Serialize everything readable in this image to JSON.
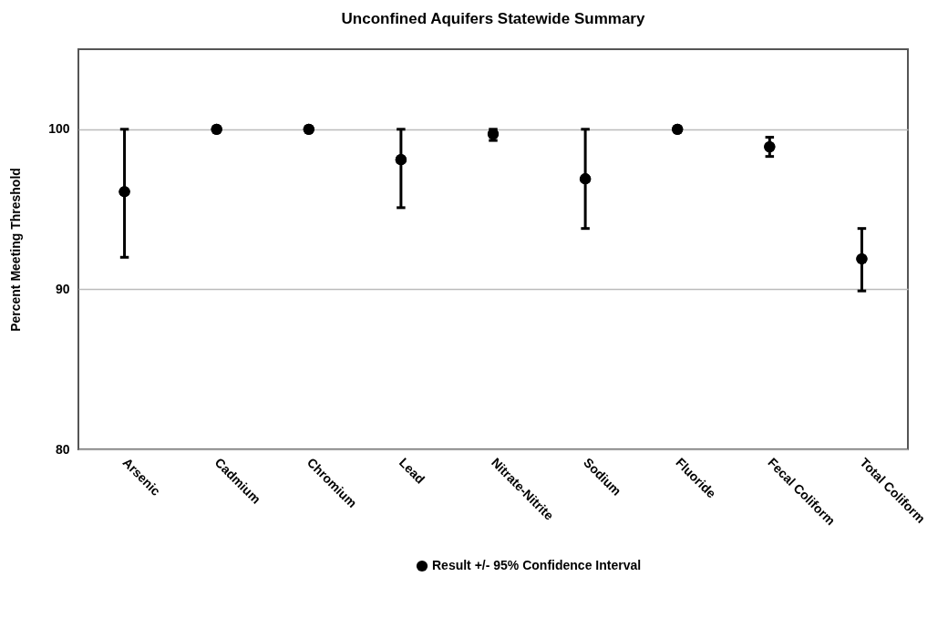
{
  "chart_data": {
    "type": "scatter",
    "title": "Unconfined Aquifers Statewide Summary",
    "ylabel": "Percent Meeting Threshold",
    "categories": [
      "Arsenic",
      "Cadmium",
      "Chromium",
      "Lead",
      "Nitrate-Nitrite",
      "Sodium",
      "Fluoride",
      "Fecal Coliform",
      "Total Coliform"
    ],
    "series": [
      {
        "name": "Result +/- 95% Confidence Interval",
        "color": "#000000",
        "values": [
          96.1,
          100,
          100,
          98.1,
          99.7,
          96.9,
          100,
          98.9,
          91.9
        ],
        "errors": [
          [
            92.0,
            100
          ],
          null,
          null,
          [
            95.1,
            100
          ],
          [
            99.3,
            100
          ],
          [
            93.8,
            100
          ],
          null,
          [
            98.3,
            99.5
          ],
          [
            89.9,
            93.8
          ]
        ]
      }
    ],
    "ylim": [
      80,
      105
    ],
    "yticks": [
      80,
      90,
      100
    ],
    "grid": "y",
    "legend": "bottom",
    "marker": "circle"
  }
}
